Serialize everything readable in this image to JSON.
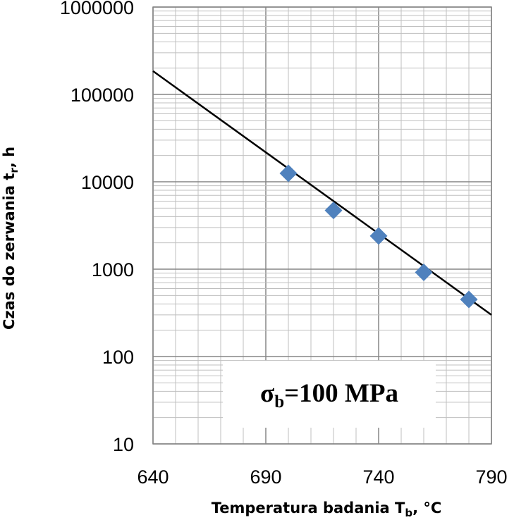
{
  "chart_data": {
    "type": "scatter",
    "title": "",
    "xlabel": {
      "main": "Temperatura badania  T",
      "sub": "b",
      "suffix": ", °C"
    },
    "ylabel": {
      "main": "Czas do zerwania t",
      "sub": "r",
      "suffix": ", h"
    },
    "x_ticks": [
      "640",
      "690",
      "740",
      "790"
    ],
    "y_ticks": [
      "10",
      "100",
      "1000",
      "10000",
      "100000",
      "1000000"
    ],
    "xlim": [
      640,
      790
    ],
    "ylim": [
      10,
      1000000
    ],
    "yscale": "log",
    "grid": true,
    "series": [
      {
        "name": "data",
        "marker": "diamond",
        "color": "#4f81bd",
        "points": [
          {
            "x": 700,
            "y": 12500
          },
          {
            "x": 720,
            "y": 4700
          },
          {
            "x": 740,
            "y": 2400
          },
          {
            "x": 760,
            "y": 920
          },
          {
            "x": 780,
            "y": 450
          }
        ]
      }
    ],
    "trendline": {
      "color": "#000000",
      "points": [
        {
          "x": 640,
          "y": 185000
        },
        {
          "x": 790,
          "y": 300
        }
      ]
    },
    "annotation": {
      "main": "σ",
      "sub": "b",
      "rest": "=100 MPa"
    }
  }
}
